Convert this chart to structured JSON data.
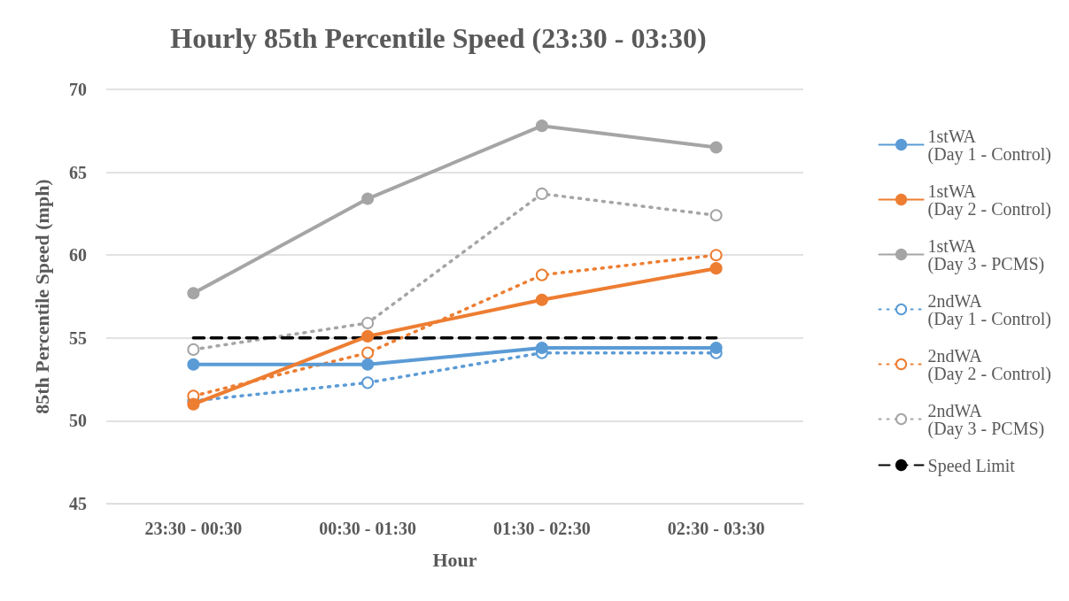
{
  "chart_data": {
    "type": "line",
    "title": "Hourly 85th Percentile Speed (23:30 - 03:30)",
    "xlabel": "Hour",
    "ylabel": "85th Percentile Speed (mph)",
    "categories": [
      "23:30 - 00:30",
      "00:30 - 01:30",
      "01:30 - 02:30",
      "02:30 - 03:30"
    ],
    "ylim": [
      45,
      70
    ],
    "yticks": [
      45,
      50,
      55,
      60,
      65,
      70
    ],
    "grid": "y",
    "legend": "right",
    "series": [
      {
        "name": "1stWA\n(Day 1 - Control)",
        "color": "#5b9bd5",
        "values": [
          53.4,
          53.4,
          54.4,
          54.4
        ],
        "marker": "circle",
        "line_style": "solid"
      },
      {
        "name": "1stWA\n(Day 2 - Control)",
        "color": "#ed7d31",
        "values": [
          51.0,
          55.1,
          57.3,
          59.2
        ],
        "marker": "circle",
        "line_style": "solid"
      },
      {
        "name": "1stWA\n(Day 3 - PCMS)",
        "color": "#a5a5a5",
        "values": [
          57.7,
          63.4,
          67.8,
          66.5
        ],
        "marker": "circle",
        "line_style": "solid"
      },
      {
        "name": "2ndWA\n(Day 1 - Control)",
        "color": "#5b9bd5",
        "values": [
          51.2,
          52.3,
          54.1,
          54.1
        ],
        "marker": "emptyCircle",
        "line_style": "dotted"
      },
      {
        "name": "2ndWA\n(Day 2 - Control)",
        "color": "#ed7d31",
        "values": [
          51.5,
          54.1,
          58.8,
          60.0
        ],
        "marker": "emptyCircle",
        "line_style": "dotted"
      },
      {
        "name": "2ndWA\n(Day 3 - PCMS)",
        "color": "#a5a5a5",
        "values": [
          54.3,
          55.9,
          63.7,
          62.4
        ],
        "marker": "emptyCircle",
        "line_style": "dotted"
      },
      {
        "name": "Speed Limit",
        "color": "#000000",
        "values": [
          55,
          55,
          55,
          55
        ],
        "marker": "none",
        "line_style": "dashed"
      }
    ]
  }
}
